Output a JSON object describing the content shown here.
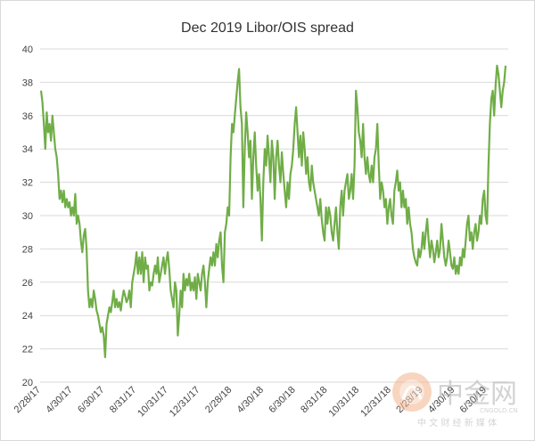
{
  "chart_data": {
    "type": "line",
    "title": "Dec 2019 Libor/OIS spread",
    "xlabel": "",
    "ylabel": "",
    "ylim": [
      20,
      40
    ],
    "yticks": [
      20,
      22,
      24,
      26,
      28,
      30,
      32,
      34,
      36,
      38,
      40
    ],
    "xticks": [
      "2/28/17",
      "4/30/17",
      "6/30/17",
      "8/31/17",
      "10/31/17",
      "12/31/17",
      "2/28/18",
      "4/30/18",
      "6/30/18",
      "8/31/18",
      "10/31/18",
      "12/31/18",
      "2/28/19",
      "4/30/19",
      "6/30/19"
    ],
    "grid": true,
    "line_color": "#70ad47",
    "series": [
      {
        "values": [
          37.5,
          36.8,
          35.5,
          34.0,
          36.2,
          35.0,
          35.5,
          34.5,
          36.0,
          35.0,
          34.0,
          33.5,
          32.5,
          31.0,
          31.5,
          30.8,
          31.5,
          30.5,
          31.0,
          30.5,
          30.8,
          30.0,
          30.5,
          30.0,
          31.3,
          29.5,
          30.0,
          29.5,
          28.5,
          27.8,
          28.8,
          29.2,
          28.0,
          25.5,
          24.5,
          25.0,
          24.5,
          25.5,
          25.0,
          24.3,
          24.0,
          23.5,
          23.0,
          23.3,
          22.8,
          21.5,
          23.5,
          24.0,
          24.5,
          24.2,
          24.8,
          25.5,
          24.5,
          25.0,
          24.5,
          24.8,
          24.3,
          25.0,
          25.5,
          25.2,
          24.8,
          25.0,
          25.5,
          24.5,
          26.0,
          26.5,
          27.0,
          27.8,
          26.5,
          27.5,
          26.5,
          27.8,
          26.0,
          27.5,
          26.8,
          27.0,
          25.5,
          26.0,
          25.8,
          26.5,
          27.0,
          26.5,
          27.5,
          26.0,
          26.5,
          27.0,
          27.5,
          26.5,
          27.3,
          27.8,
          26.8,
          25.5,
          25.0,
          24.5,
          26.0,
          25.5,
          22.8,
          24.0,
          25.5,
          24.5,
          26.5,
          25.5,
          26.2,
          25.8,
          26.5,
          25.5,
          26.0,
          25.5,
          26.3,
          25.0,
          26.5,
          26.0,
          25.5,
          26.5,
          27.0,
          26.0,
          24.5,
          26.0,
          26.8,
          27.5,
          27.0,
          27.8,
          27.0,
          28.3,
          27.5,
          28.5,
          29.0,
          27.0,
          26.0,
          29.0,
          29.5,
          30.5,
          30.0,
          33.5,
          35.5,
          35.0,
          36.0,
          37.0,
          38.0,
          38.8,
          36.5,
          35.5,
          30.5,
          34.0,
          36.2,
          35.0,
          33.5,
          34.5,
          31.0,
          33.5,
          35.0,
          33.0,
          31.5,
          32.5,
          31.0,
          28.5,
          32.0,
          34.0,
          33.0,
          34.8,
          33.5,
          32.0,
          34.5,
          33.5,
          31.0,
          33.5,
          34.5,
          33.0,
          32.0,
          33.8,
          32.5,
          31.5,
          30.5,
          32.0,
          31.0,
          32.5,
          33.0,
          34.0,
          35.5,
          36.5,
          35.0,
          33.5,
          34.8,
          33.0,
          35.0,
          34.0,
          32.5,
          33.5,
          32.0,
          31.5,
          33.0,
          32.0,
          31.5,
          31.0,
          30.5,
          30.0,
          31.0,
          29.8,
          29.0,
          28.5,
          30.5,
          29.5,
          30.5,
          30.0,
          29.0,
          28.5,
          29.5,
          30.5,
          29.0,
          28.0,
          30.5,
          31.5,
          30.0,
          31.5,
          32.0,
          32.5,
          31.0,
          31.5,
          32.5,
          31.0,
          33.0,
          37.5,
          36.5,
          35.0,
          34.5,
          33.5,
          35.5,
          33.5,
          32.5,
          33.5,
          32.5,
          32.0,
          33.0,
          32.0,
          33.5,
          34.0,
          35.5,
          33.0,
          31.0,
          32.0,
          31.5,
          30.5,
          31.0,
          29.5,
          30.5,
          31.0,
          30.0,
          29.5,
          31.5,
          32.0,
          32.7,
          31.5,
          32.0,
          30.5,
          31.5,
          30.5,
          31.0,
          29.5,
          30.5,
          29.5,
          29.0,
          28.0,
          27.5,
          27.2,
          27.0,
          28.0,
          27.5,
          28.0,
          29.0,
          28.0,
          29.0,
          29.8,
          28.5,
          27.5,
          28.5,
          28.0,
          27.2,
          27.8,
          28.5,
          27.5,
          28.0,
          29.5,
          28.5,
          27.5,
          27.0,
          27.5,
          28.5,
          27.8,
          27.0,
          26.8,
          27.5,
          26.5,
          27.0,
          26.5,
          27.5,
          27.0,
          28.0,
          27.5,
          28.5,
          29.5,
          30.0,
          28.5,
          29.0,
          28.0,
          29.0,
          29.5,
          28.5,
          29.0,
          30.0,
          29.5,
          31.0,
          31.5,
          30.0,
          29.5,
          33.0,
          35.5,
          37.0,
          37.5,
          36.0,
          37.8,
          39.0,
          38.5,
          37.5,
          36.5,
          37.5,
          38.0,
          39.0
        ]
      }
    ]
  },
  "watermark": {
    "main_text": "中金网",
    "url_text": "CNGOLD.CN",
    "sub_text": "中 文 财 经 新 媒 体"
  }
}
